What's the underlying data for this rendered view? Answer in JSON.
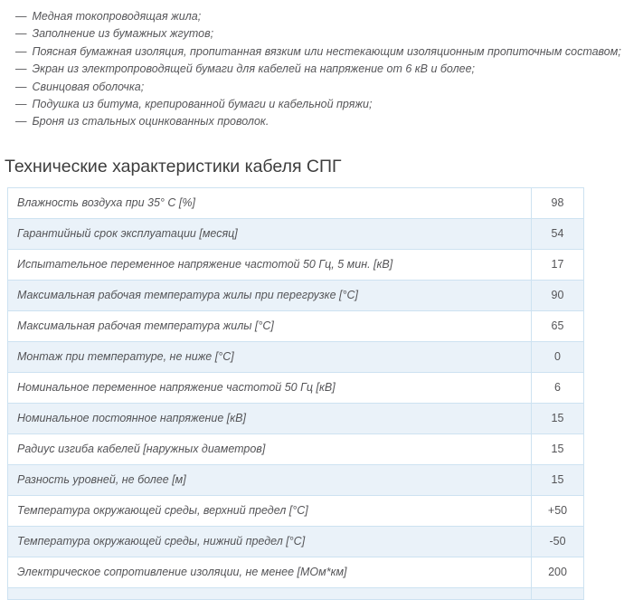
{
  "page": {
    "construction_list": {
      "marker": "—",
      "items": [
        "Медная токопроводящая жила;",
        "Заполнение из бумажных жгутов;",
        "Поясная бумажная изоляция, пропитанная вязким или нестекающим изоляционным пропиточным составом;",
        "Экран из электропроводящей бумаги для кабелей на напряжение от 6 кВ и более;",
        "Свинцовая оболочка;",
        "Подушка из битума, крепированной бумаги и кабельной пряжи;",
        "Броня из стальных оцинкованных проволок."
      ]
    },
    "section_title": "Технические характеристики кабеля СПГ",
    "specs_table": {
      "rows": [
        {
          "param": "Влажность воздуха при 35° С [%]",
          "value": "98"
        },
        {
          "param": "Гарантийный срок эксплуатации [месяц]",
          "value": "54"
        },
        {
          "param": "Испытательное переменное напряжение частотой 50 Гц, 5 мин. [кВ]",
          "value": "17"
        },
        {
          "param": "Максимальная рабочая температура жилы при перегрузке [°С]",
          "value": "90"
        },
        {
          "param": "Максимальная рабочая температура жилы [°С]",
          "value": "65"
        },
        {
          "param": "Монтаж при температуре, не ниже [°С]",
          "value": "0"
        },
        {
          "param": "Номинальное переменное напряжение частотой 50 Гц [кВ]",
          "value": "6"
        },
        {
          "param": "Номинальное постоянное напряжение [кВ]",
          "value": "15"
        },
        {
          "param": "Радиус изгиба кабелей [наружных диаметров]",
          "value": "15"
        },
        {
          "param": "Разность уровней, не более [м]",
          "value": "15"
        },
        {
          "param": "Температура окружающей среды, верхний предел [°С]",
          "value": "+50"
        },
        {
          "param": "Температура окружающей среды, нижний предел [°С]",
          "value": "-50"
        },
        {
          "param": "Электрическое сопротивление изоляции, не менее [МОм*км]",
          "value": "200"
        }
      ],
      "partial_next_row_visible": true
    },
    "colors": {
      "alt_row_bg": "#eaf2f9",
      "table_border": "#cde2f1",
      "body_text": "#555557",
      "heading_text": "#3d3d3d"
    }
  }
}
